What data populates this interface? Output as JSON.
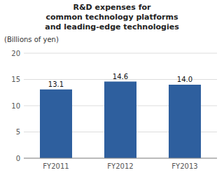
{
  "chart_data": {
    "type": "bar",
    "title": "R&D expenses for\ncommon technology platforms\nand leading-edge technologies",
    "ylabel": "(Billions of yen)",
    "categories": [
      "FY2011",
      "FY2012",
      "FY2013"
    ],
    "values": [
      13.1,
      14.6,
      14.0
    ],
    "value_labels": [
      "13.1",
      "14.6",
      "14.0"
    ],
    "color": "#2e5f9e",
    "ylim": [
      0,
      20
    ],
    "yticks": [
      0,
      5,
      10,
      15,
      20
    ],
    "grid": true,
    "data_labels": true
  }
}
